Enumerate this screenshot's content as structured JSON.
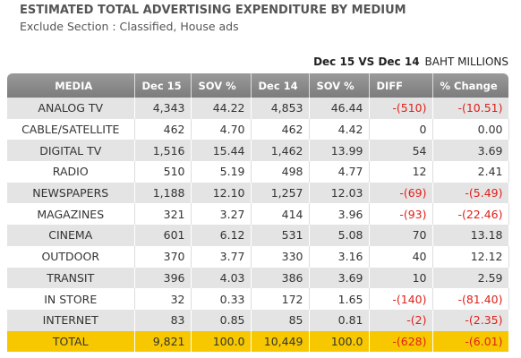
{
  "header": {
    "title": "ESTIMATED TOTAL ADVERTISING EXPENDITURE BY MEDIUM",
    "subtitle": "Exclude Section : Classified, House ads",
    "comparison": "Dec 15 VS Dec 14",
    "unit": "BAHT MILLIONS"
  },
  "table": {
    "columns": [
      "MEDIA",
      "Dec 15",
      "SOV %",
      "Dec 14",
      "SOV %",
      "DIFF",
      "% Change"
    ],
    "rows": [
      [
        "ANALOG  TV",
        "4,343",
        "44.22",
        "4,853",
        "46.44",
        "-(510)",
        "-(10.51)"
      ],
      [
        "CABLE/SATELLITE",
        "462",
        "4.70",
        "462",
        "4.42",
        "0",
        "0.00"
      ],
      [
        "DIGITAL TV",
        "1,516",
        "15.44",
        "1,462",
        "13.99",
        "54",
        "3.69"
      ],
      [
        "RADIO",
        "510",
        "5.19",
        "498",
        "4.77",
        "12",
        "2.41"
      ],
      [
        "NEWSPAPERS",
        "1,188",
        "12.10",
        "1,257",
        "12.03",
        "-(69)",
        "-(5.49)"
      ],
      [
        "MAGAZINES",
        "321",
        "3.27",
        "414",
        "3.96",
        "-(93)",
        "-(22.46)"
      ],
      [
        "CINEMA",
        "601",
        "6.12",
        "531",
        "5.08",
        "70",
        "13.18"
      ],
      [
        "OUTDOOR",
        "370",
        "3.77",
        "330",
        "3.16",
        "40",
        "12.12"
      ],
      [
        "TRANSIT",
        "396",
        "4.03",
        "386",
        "3.69",
        "10",
        "2.59"
      ],
      [
        "IN STORE",
        "32",
        "0.33",
        "172",
        "1.65",
        "-(140)",
        "-(81.40)"
      ],
      [
        "INTERNET",
        "83",
        "0.85",
        "85",
        "0.81",
        "-(2)",
        "-(2.35)"
      ]
    ],
    "total": [
      "TOTAL",
      "9,821",
      "100.0",
      "10,449",
      "100.0",
      "-(628)",
      "-(6.01)"
    ]
  }
}
